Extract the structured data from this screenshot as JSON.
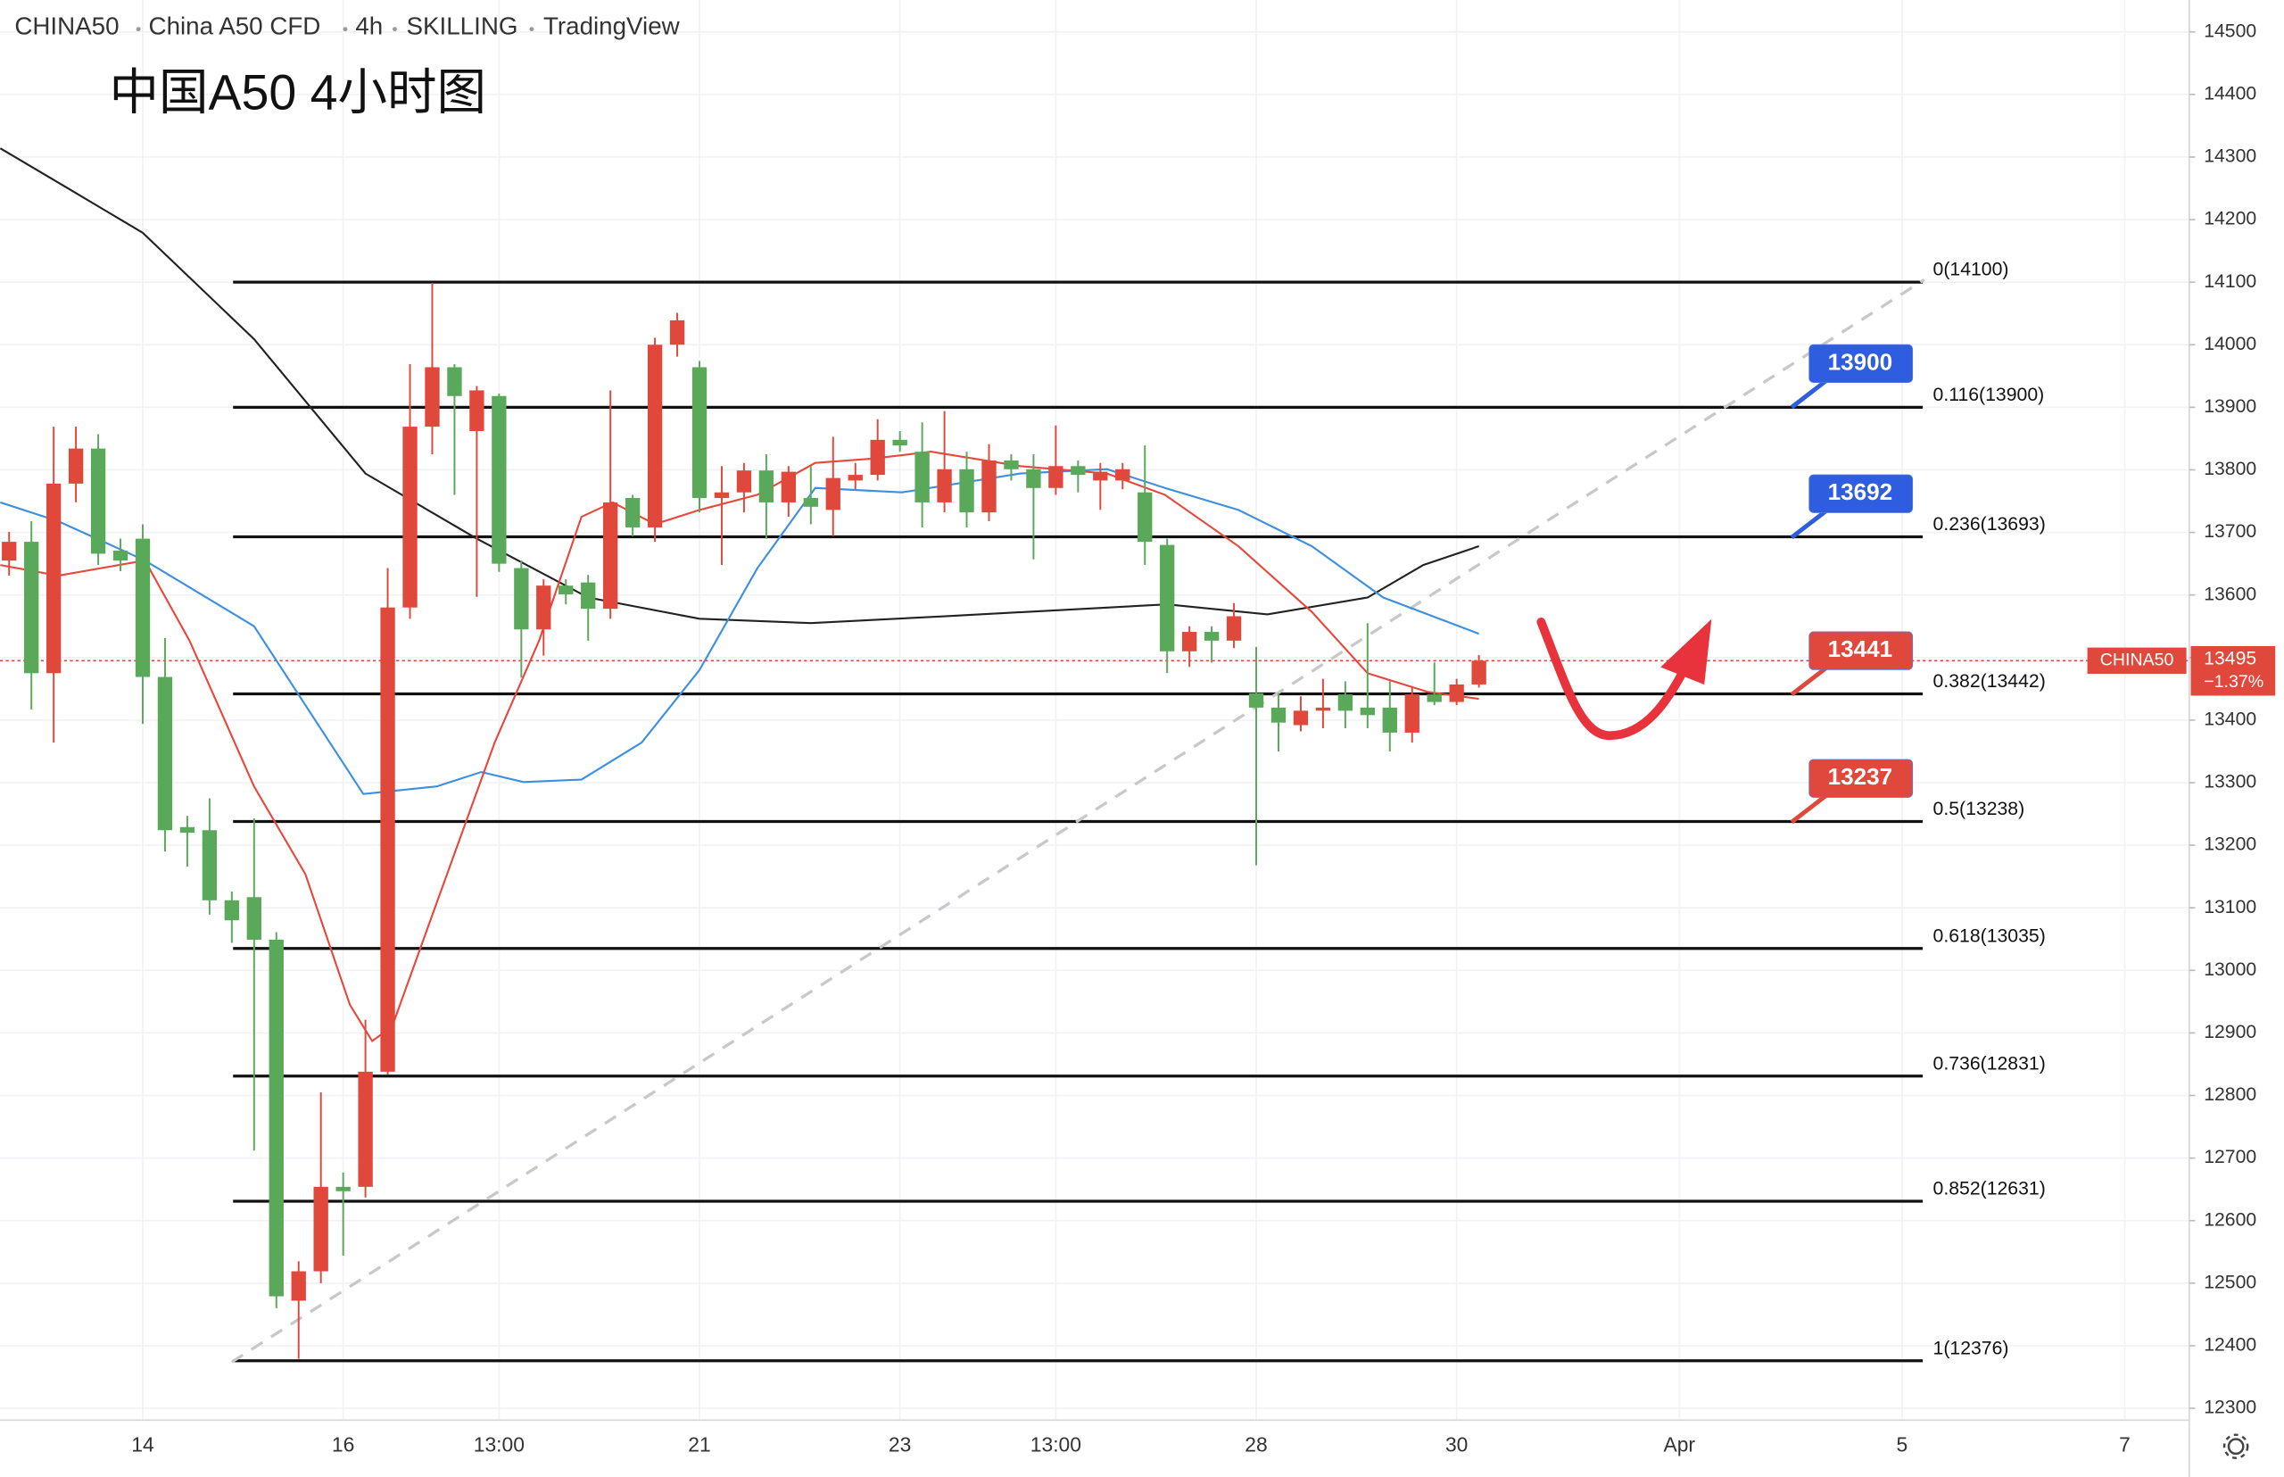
{
  "chart_data": {
    "type": "candlestick",
    "title": "中国A50 4小时图",
    "symbol_info": [
      "CHINA50",
      "China A50 CFD",
      "4h",
      "SKILLING",
      "TradingView"
    ],
    "up_color": "#e0483b",
    "down_color": "#5aa85a",
    "x": [
      0,
      1,
      2,
      3,
      4,
      5,
      6,
      7,
      8,
      9,
      10,
      11,
      12,
      13,
      14,
      15,
      16,
      17,
      18,
      19,
      20,
      21,
      22,
      23,
      24,
      25,
      26,
      27,
      28,
      29,
      30,
      31,
      32,
      33,
      34,
      35,
      36,
      37,
      38,
      39,
      40,
      41,
      42,
      43,
      44,
      45,
      46,
      47,
      48,
      49,
      50,
      51,
      52,
      53,
      54,
      55,
      56,
      57,
      58,
      59,
      60,
      61,
      62,
      63,
      64,
      65,
      66
    ],
    "open": [
      13655,
      13685,
      13475,
      13778,
      13834,
      13671,
      13690,
      13469,
      13229,
      13224,
      13112,
      13117,
      13049,
      12472,
      12519,
      12654,
      12654,
      12838,
      13580,
      13869,
      13964,
      13862,
      13918,
      13643,
      13545,
      13615,
      13620,
      13578,
      13755,
      13708,
      14000,
      13964,
      13755,
      13764,
      13799,
      13748,
      13755,
      13736,
      13783,
      13792,
      13848,
      13829,
      13748,
      13801,
      13732,
      13815,
      13801,
      13771,
      13806,
      13783,
      13783,
      13764,
      13680,
      13510,
      13541,
      13527,
      13443,
      13420,
      13392,
      13415,
      13441,
      13420,
      13420,
      13380,
      13441,
      13429,
      13457
    ],
    "high": [
      13701,
      13718,
      13869,
      13869,
      13857,
      13690,
      13713,
      13531,
      13247,
      13275,
      13126,
      13243,
      13061,
      12535,
      12805,
      12677,
      12921,
      13643,
      13969,
      14099,
      13969,
      13934,
      13922,
      13655,
      13625,
      13625,
      13632,
      13927,
      13760,
      14011,
      14051,
      13974,
      13806,
      13811,
      13825,
      13806,
      13806,
      13853,
      13811,
      13881,
      13862,
      13876,
      13894,
      13829,
      13841,
      13825,
      13825,
      13871,
      13815,
      13811,
      13811,
      13839,
      13690,
      13550,
      13550,
      13587,
      13517,
      13443,
      13438,
      13466,
      13462,
      13555,
      13462,
      13452,
      13492,
      13466,
      13504
    ],
    "low": [
      13631,
      13417,
      13364,
      13748,
      13648,
      13638,
      13394,
      13190,
      13166,
      13089,
      13044,
      12712,
      12460,
      12379,
      12500,
      12544,
      12637,
      12833,
      13562,
      13825,
      13760,
      13597,
      13637,
      13468,
      13503,
      13585,
      13527,
      13562,
      13694,
      13685,
      13981,
      13732,
      13648,
      13732,
      13690,
      13725,
      13713,
      13694,
      13769,
      13783,
      13829,
      13708,
      13732,
      13708,
      13718,
      13783,
      13657,
      13760,
      13764,
      13736,
      13769,
      13648,
      13475,
      13485,
      13492,
      13515,
      13168,
      13350,
      13382,
      13387,
      13387,
      13387,
      13350,
      13364,
      13424,
      13424,
      13452
    ],
    "close": [
      13685,
      13475,
      13778,
      13834,
      13666,
      13655,
      13469,
      13224,
      13220,
      13112,
      13080,
      13049,
      12479,
      12519,
      12654,
      12647,
      12838,
      13580,
      13869,
      13964,
      13918,
      13927,
      13650,
      13545,
      13615,
      13601,
      13578,
      13748,
      13708,
      14000,
      14039,
      13755,
      13764,
      13799,
      13748,
      13797,
      13741,
      13787,
      13792,
      13848,
      13839,
      13748,
      13801,
      13732,
      13815,
      13801,
      13771,
      13806,
      13792,
      13797,
      13801,
      13685,
      13510,
      13541,
      13527,
      13566,
      13420,
      13396,
      13415,
      13420,
      13415,
      13408,
      13380,
      13441,
      13429,
      13457,
      13495
    ],
    "moving_averages": [
      {
        "color": "#222222",
        "x": [
          -0.4,
          2.5,
          6,
          11,
          16,
          21,
          26,
          31,
          36,
          42,
          52,
          56.5,
          61,
          63.5,
          66
        ],
        "values": [
          14314,
          14253,
          14179,
          14009,
          13794,
          13690,
          13596,
          13562,
          13555,
          13566,
          13585,
          13569,
          13596,
          13648,
          13678
        ]
      },
      {
        "color": "#3d8fe0",
        "x": [
          -0.4,
          2.2,
          6.1,
          11,
          15.9,
          19.2,
          21.2,
          23.1,
          25.7,
          28.4,
          31,
          33.6,
          36.2,
          40.1,
          45.4,
          49.3,
          51.9,
          55.2,
          58.5,
          61.7,
          66
        ],
        "values": [
          13748,
          13718,
          13655,
          13550,
          13282,
          13294,
          13317,
          13301,
          13305,
          13364,
          13480,
          13643,
          13771,
          13764,
          13794,
          13801,
          13771,
          13736,
          13678,
          13596,
          13538
        ]
      },
      {
        "color": "#e8483c",
        "x": [
          -0.4,
          2.2,
          6.1,
          8.1,
          11,
          13.3,
          15.3,
          16.3,
          17.2,
          19.2,
          21.8,
          23.8,
          25.7,
          27.1,
          29,
          31,
          33.6,
          36.2,
          38.8,
          41.4,
          45.4,
          49.3,
          51.9,
          55.2,
          58.5,
          61,
          63.7,
          66
        ],
        "values": [
          13648,
          13631,
          13655,
          13527,
          13294,
          13154,
          12945,
          12887,
          12910,
          13108,
          13364,
          13527,
          13725,
          13748,
          13713,
          13736,
          13760,
          13811,
          13818,
          13829,
          13806,
          13794,
          13760,
          13678,
          13573,
          13475,
          13445,
          13434
        ]
      }
    ],
    "trendline": {
      "color": "#c8c8c8",
      "x": [
        10,
        86
      ],
      "values": [
        12374,
        14104
      ]
    },
    "fib_levels": [
      {
        "label": "0(14100)",
        "value": 14100
      },
      {
        "label": "0.116(13900)",
        "value": 13900
      },
      {
        "label": "0.236(13693)",
        "value": 13693
      },
      {
        "label": "0.382(13442)",
        "value": 13442
      },
      {
        "label": "0.5(13238)",
        "value": 13238
      },
      {
        "label": "0.618(13035)",
        "value": 13035
      },
      {
        "label": "0.736(12831)",
        "value": 12831
      },
      {
        "label": "0.852(12631)",
        "value": 12631
      },
      {
        "label": "1(12376)",
        "value": 12376
      }
    ],
    "price_tags": [
      {
        "value": 13900,
        "color": "#2f5de0"
      },
      {
        "value": 13692,
        "color": "#2f5de0"
      },
      {
        "value": 13441,
        "color": "#e0483b"
      },
      {
        "value": 13237,
        "color": "#e0483b"
      }
    ],
    "last_price": {
      "symbol": "CHINA50",
      "value": 13495,
      "change": "−1.37%",
      "color": "#e0483b"
    },
    "xlim": [
      -0.41,
      97.9
    ],
    "xticks": [
      {
        "value": 6,
        "label": "14"
      },
      {
        "value": 15,
        "label": "16"
      },
      {
        "value": 22,
        "label": "13:00"
      },
      {
        "value": 31,
        "label": "21"
      },
      {
        "value": 40,
        "label": "23"
      },
      {
        "value": 47,
        "label": "13:00"
      },
      {
        "value": 56,
        "label": "28"
      },
      {
        "value": 65,
        "label": "30"
      },
      {
        "value": 75,
        "label": "Apr"
      },
      {
        "value": 85,
        "label": "5"
      },
      {
        "value": 95,
        "label": "7"
      }
    ],
    "ylim": [
      12281,
      14551
    ],
    "yticks": [
      12300,
      12400,
      12500,
      12600,
      12700,
      12800,
      12900,
      13000,
      13100,
      13200,
      13300,
      13400,
      13500,
      13600,
      13700,
      13800,
      13900,
      14000,
      14100,
      14200,
      14300,
      14400,
      14500
    ],
    "grid": true
  }
}
